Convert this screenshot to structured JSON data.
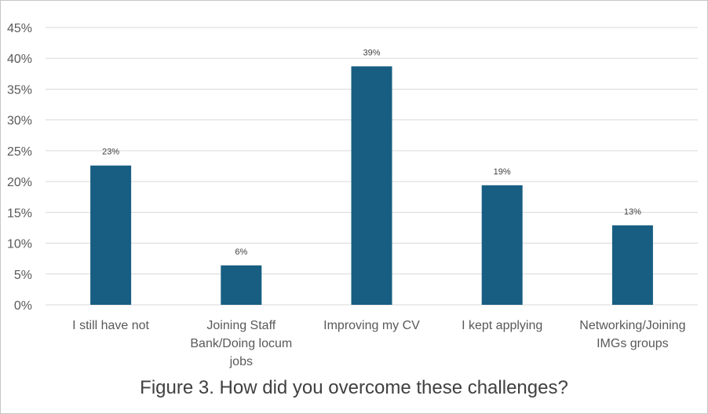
{
  "chart_data": {
    "type": "bar",
    "title": "Figure 3. How did you overcome these challenges?",
    "categories": [
      [
        "I still have not"
      ],
      [
        "Joining Staff",
        "Bank/Doing locum",
        "jobs"
      ],
      [
        "Improving my CV"
      ],
      [
        "I kept applying"
      ],
      [
        "Networking/Joining",
        "IMGs groups"
      ]
    ],
    "values": [
      22.6,
      6.4,
      38.7,
      19.4,
      12.9
    ],
    "data_labels": [
      "23%",
      "6%",
      "39%",
      "19%",
      "13%"
    ],
    "y_ticks": [
      "0%",
      "5%",
      "10%",
      "15%",
      "20%",
      "25%",
      "30%",
      "35%",
      "40%",
      "45%"
    ],
    "ylim": [
      0,
      45
    ],
    "grid": true,
    "legend": "none",
    "colors": {
      "bar": "#175e82"
    }
  }
}
